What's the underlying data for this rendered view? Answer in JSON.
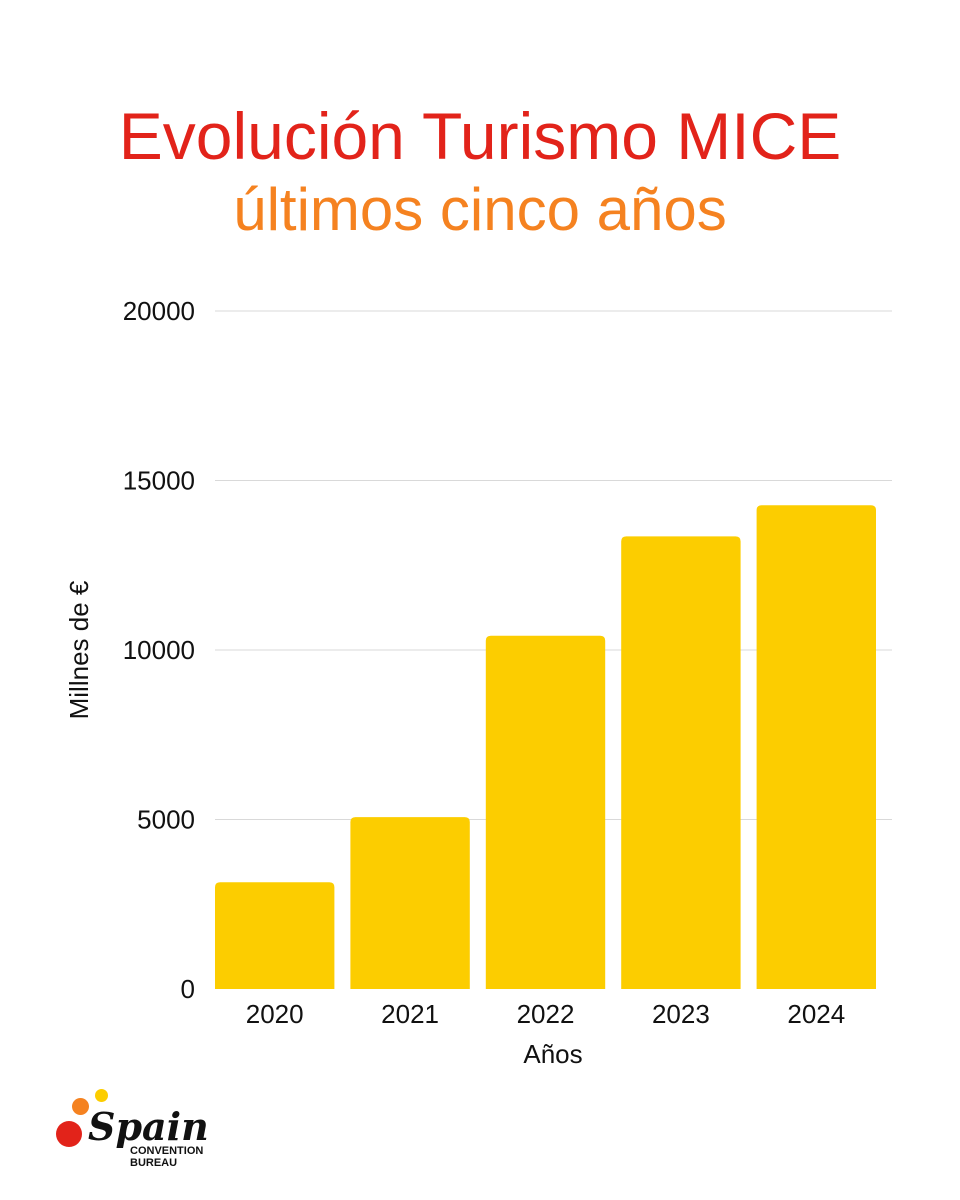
{
  "header": {
    "title": "Evolución Turismo MICE",
    "subtitle": "últimos cinco años"
  },
  "colors": {
    "title": "#e2231a",
    "subtitle": "#f58220",
    "bar": "#fccd00",
    "grid": "#d9d9d9"
  },
  "chart_data": {
    "type": "bar",
    "categories": [
      "2020",
      "2021",
      "2022",
      "2023",
      "2024"
    ],
    "values": [
      3150,
      5070,
      10420,
      13350,
      14270
    ],
    "title": "",
    "xlabel": "Años",
    "ylabel": "Millnes de €",
    "ylim": [
      0,
      20000
    ],
    "yticks": [
      "0",
      "5000",
      "10000",
      "15000",
      "20000"
    ],
    "grid": true,
    "legend": "none"
  },
  "logo": {
    "word": "Spain",
    "line1": "CONVENTION",
    "line2": "BUREAU"
  }
}
